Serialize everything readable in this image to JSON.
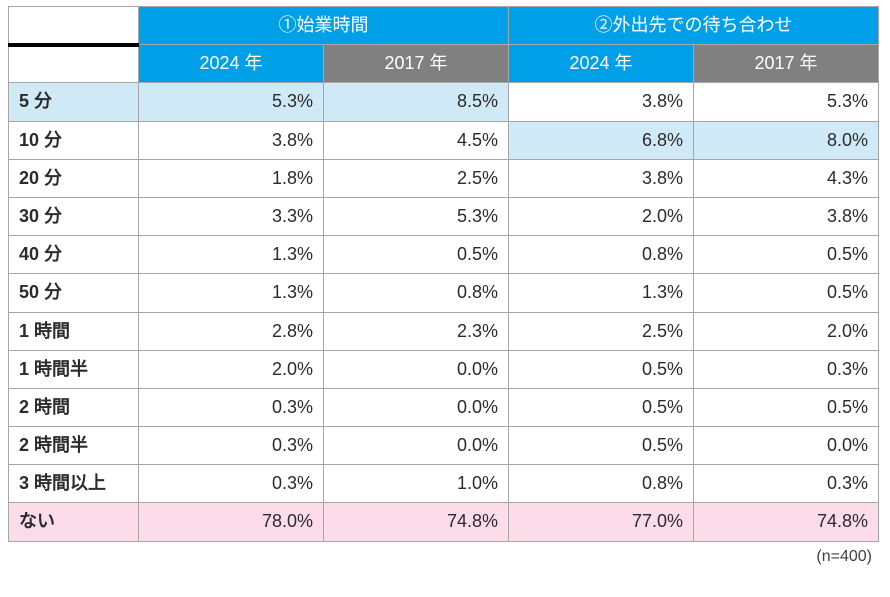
{
  "table": {
    "group_headers": [
      "①始業時間",
      "②外出先での待ち合わせ"
    ],
    "year_headers": [
      "2024 年",
      "2017 年",
      "2024 年",
      "2017 年"
    ],
    "row_labels": [
      "5 分",
      "10 分",
      "20 分",
      "30 分",
      "40 分",
      "50 分",
      "1 時間",
      "1 時間半",
      "2 時間",
      "2 時間半",
      "3 時間以上",
      "ない"
    ],
    "rows": [
      [
        "5.3%",
        "8.5%",
        "3.8%",
        "5.3%"
      ],
      [
        "3.8%",
        "4.5%",
        "6.8%",
        "8.0%"
      ],
      [
        "1.8%",
        "2.5%",
        "3.8%",
        "4.3%"
      ],
      [
        "3.3%",
        "5.3%",
        "2.0%",
        "3.8%"
      ],
      [
        "1.3%",
        "0.5%",
        "0.8%",
        "0.5%"
      ],
      [
        "1.3%",
        "0.8%",
        "1.3%",
        "0.5%"
      ],
      [
        "2.8%",
        "2.3%",
        "2.5%",
        "2.0%"
      ],
      [
        "2.0%",
        "0.0%",
        "0.5%",
        "0.3%"
      ],
      [
        "0.3%",
        "0.0%",
        "0.5%",
        "0.5%"
      ],
      [
        "0.3%",
        "0.0%",
        "0.5%",
        "0.0%"
      ],
      [
        "0.3%",
        "1.0%",
        "0.8%",
        "0.3%"
      ],
      [
        "78.0%",
        "74.8%",
        "77.0%",
        "74.8%"
      ]
    ],
    "highlights": {
      "row0_left": true,
      "row1_right": true,
      "row11_all": true
    },
    "colors": {
      "header_blue": "#00a0e9",
      "header_grey": "#808080",
      "hl_blue": "#cfe9f7",
      "hl_pink": "#fbdce8",
      "border": "#a6a6a6",
      "thick_border": "#000000",
      "text": "#2b2b2b"
    },
    "font_sizes": {
      "cell": 18,
      "footer": 16
    }
  },
  "footer": "(n=400)"
}
